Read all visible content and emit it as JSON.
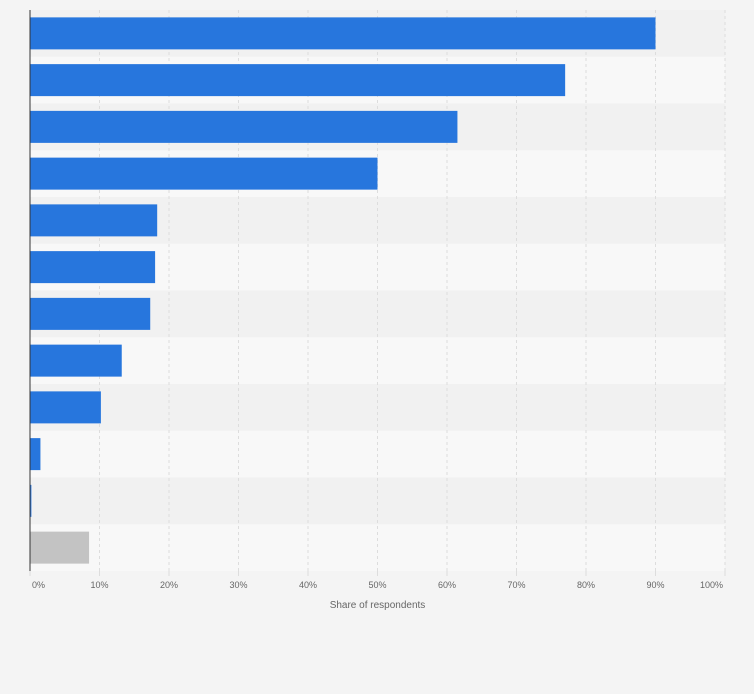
{
  "chart_data": {
    "type": "bar",
    "orientation": "horizontal",
    "xlabel": "Share of respondents",
    "xlim": [
      0,
      100
    ],
    "ticks": [
      0,
      10,
      20,
      30,
      40,
      50,
      60,
      70,
      80,
      90,
      100
    ],
    "tick_labels": [
      "0%",
      "10%",
      "20%",
      "30%",
      "40%",
      "50%",
      "60%",
      "70%",
      "80%",
      "90%",
      "100%"
    ],
    "values": [
      90,
      77,
      61.5,
      50,
      18.3,
      18,
      17.3,
      13.2,
      10.2,
      1.5,
      0.2,
      8.5
    ],
    "bar_colors": [
      "#2776dd",
      "#2776dd",
      "#2776dd",
      "#2776dd",
      "#2776dd",
      "#2776dd",
      "#2776dd",
      "#2776dd",
      "#2776dd",
      "#2776dd",
      "#2776dd",
      "#c3c3c3"
    ],
    "grid": true,
    "colors": {
      "bar": "#2776dd",
      "other_bar": "#c3c3c3",
      "band_dark": "#f1f1f1",
      "band_light": "#f8f8f8",
      "grid": "#dddddd",
      "axis": "#333333"
    }
  }
}
